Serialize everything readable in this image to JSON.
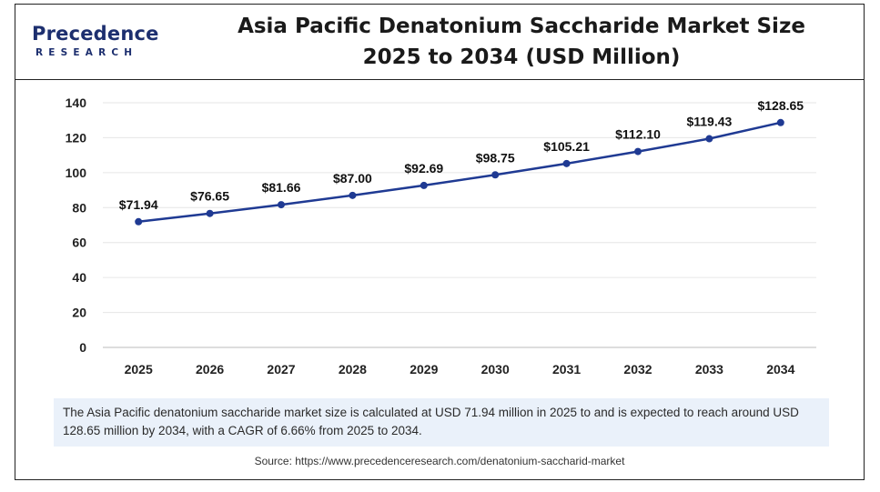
{
  "logo": {
    "main": "Precedence",
    "sub": "RESEARCH"
  },
  "title_line1": "Asia Pacific Denatonium Saccharide Market Size",
  "title_line2": "2025 to 2034 (USD Million)",
  "description": "The Asia Pacific denatonium saccharide market size is calculated at USD 71.94 million in 2025 to and is expected to reach around USD 128.65 million by 2034, with a CAGR of 6.66% from 2025 to 2034.",
  "source": "Source: https://www.precedenceresearch.com/denatonium-saccharid-market",
  "colors": {
    "line": "#1f3a93",
    "marker": "#1f3a93",
    "note_bg": "#eaf1fa",
    "brand": "#1d2f6f"
  },
  "chart_data": {
    "type": "line",
    "categories": [
      "2025",
      "2026",
      "2027",
      "2028",
      "2029",
      "2030",
      "2031",
      "2032",
      "2033",
      "2034"
    ],
    "values": [
      71.94,
      76.65,
      81.66,
      87.0,
      92.69,
      98.75,
      105.21,
      112.1,
      119.43,
      128.65
    ],
    "data_labels": [
      "$71.94",
      "$76.65",
      "$81.66",
      "$87.00",
      "$92.69",
      "$98.75",
      "$105.21",
      "$112.10",
      "$119.43",
      "$128.65"
    ],
    "ylim": [
      0,
      140
    ],
    "yticks": [
      0,
      20,
      40,
      60,
      80,
      100,
      120,
      140
    ],
    "grid": true,
    "legend": "none"
  }
}
